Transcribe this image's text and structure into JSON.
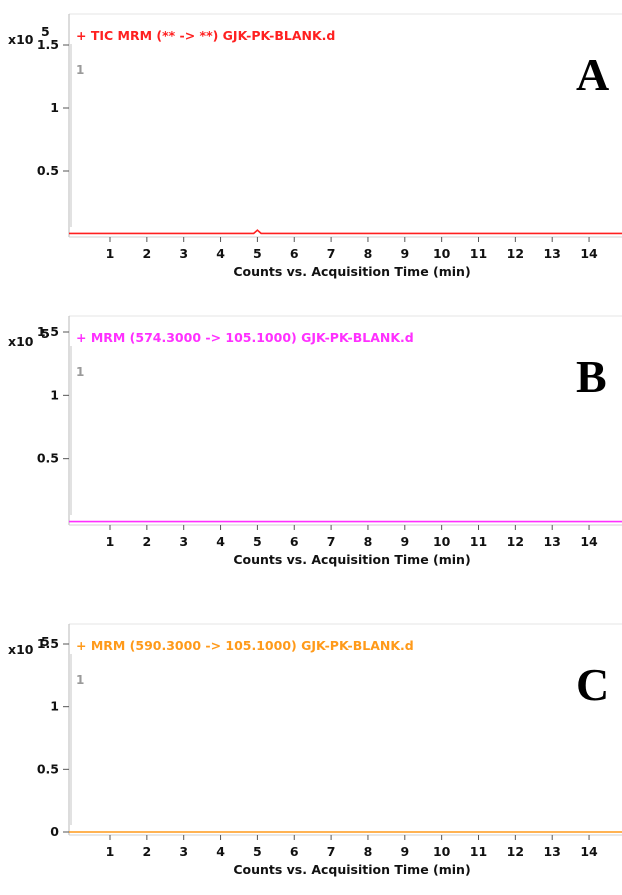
{
  "chart_data": [
    {
      "type": "line",
      "panel_letter": "A",
      "title": "+ TIC MRM (** -> **) GJK-PK-BLANK.d",
      "series_color": "#ff2020",
      "xlabel": "Counts vs. Acquisition Time (min)",
      "y_multiplier": "x10",
      "y_multiplier_exponent": "5",
      "peak_marker": "1",
      "xlim": [
        0,
        15
      ],
      "ylim": [
        0,
        1.6
      ],
      "x_ticks": [
        "1",
        "2",
        "3",
        "4",
        "5",
        "6",
        "7",
        "8",
        "9",
        "10",
        "11",
        "12",
        "13",
        "14"
      ],
      "y_ticks": [
        "0.5",
        "1",
        "1.5"
      ],
      "series": [
        {
          "x": [
            0,
            4.9,
            5.0,
            5.1,
            15
          ],
          "y": [
            0.005,
            0.005,
            0.03,
            0.005,
            0.005
          ]
        }
      ]
    },
    {
      "type": "line",
      "panel_letter": "B",
      "title": "+ MRM (574.3000 -> 105.1000) GJK-PK-BLANK.d",
      "series_color": "#ff30ff",
      "xlabel": "Counts vs. Acquisition Time (min)",
      "y_multiplier": "x10",
      "y_multiplier_exponent": "5",
      "peak_marker": "1",
      "xlim": [
        0,
        15
      ],
      "ylim": [
        0,
        1.6
      ],
      "x_ticks": [
        "1",
        "2",
        "3",
        "4",
        "5",
        "6",
        "7",
        "8",
        "9",
        "10",
        "11",
        "12",
        "13",
        "14"
      ],
      "y_ticks": [
        "0.5",
        "1",
        "1.5"
      ],
      "series": [
        {
          "x": [
            0,
            15
          ],
          "y": [
            0.003,
            0.003
          ]
        }
      ]
    },
    {
      "type": "line",
      "panel_letter": "C",
      "title": "+ MRM (590.3000 -> 105.1000) GJK-PK-BLANK.d",
      "series_color": "#ff9a1a",
      "xlabel": "Counts vs. Acquisition Time (min)",
      "y_multiplier": "x10",
      "y_multiplier_exponent": "5",
      "peak_marker": "1",
      "xlim": [
        0,
        15
      ],
      "ylim": [
        -0.1,
        1.6
      ],
      "x_ticks": [
        "1",
        "2",
        "3",
        "4",
        "5",
        "6",
        "7",
        "8",
        "9",
        "10",
        "11",
        "12",
        "13",
        "14"
      ],
      "y_ticks": [
        "0",
        "0.5",
        "1",
        "1.5"
      ],
      "series": [
        {
          "x": [
            0,
            15
          ],
          "y": [
            0.0,
            0.0
          ]
        }
      ]
    }
  ]
}
